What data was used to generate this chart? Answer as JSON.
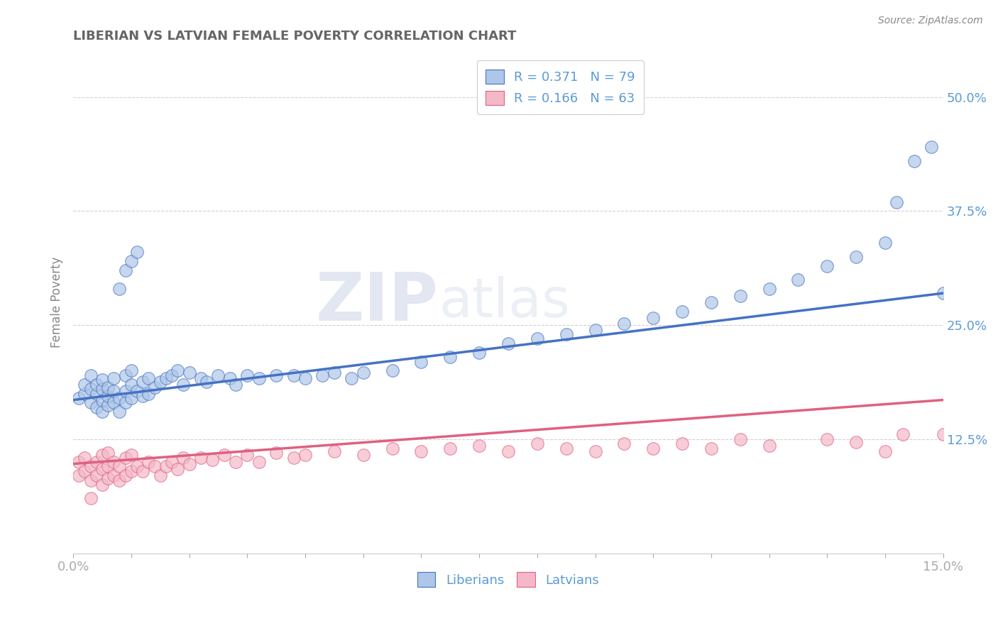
{
  "title": "LIBERIAN VS LATVIAN FEMALE POVERTY CORRELATION CHART",
  "source": "Source: ZipAtlas.com",
  "ylabel": "Female Poverty",
  "xlim": [
    0.0,
    0.15
  ],
  "ylim": [
    0.0,
    0.55
  ],
  "yticks": [
    0.0,
    0.125,
    0.25,
    0.375,
    0.5
  ],
  "ytick_labels": [
    "",
    "12.5%",
    "25.0%",
    "37.5%",
    "50.0%"
  ],
  "liberians_R": 0.371,
  "liberians_N": 79,
  "latvians_R": 0.166,
  "latvians_N": 63,
  "liberian_color": "#aec6e8",
  "latvian_color": "#f4b8c8",
  "liberian_line_color": "#4472c4",
  "latvian_line_color": "#e06080",
  "background_color": "#ffffff",
  "tick_color": "#5b9bd5",
  "liberian_x": [
    0.001,
    0.002,
    0.002,
    0.003,
    0.003,
    0.003,
    0.004,
    0.004,
    0.004,
    0.005,
    0.005,
    0.005,
    0.005,
    0.006,
    0.006,
    0.006,
    0.007,
    0.007,
    0.007,
    0.008,
    0.008,
    0.009,
    0.009,
    0.009,
    0.01,
    0.01,
    0.01,
    0.011,
    0.012,
    0.012,
    0.013,
    0.013,
    0.014,
    0.015,
    0.016,
    0.017,
    0.018,
    0.019,
    0.02,
    0.022,
    0.023,
    0.025,
    0.027,
    0.028,
    0.03,
    0.032,
    0.035,
    0.038,
    0.04,
    0.043,
    0.045,
    0.048,
    0.05,
    0.055,
    0.06,
    0.065,
    0.07,
    0.075,
    0.08,
    0.085,
    0.09,
    0.095,
    0.1,
    0.105,
    0.11,
    0.115,
    0.12,
    0.125,
    0.13,
    0.135,
    0.14,
    0.142,
    0.145,
    0.148,
    0.15,
    0.008,
    0.009,
    0.01,
    0.011
  ],
  "liberian_y": [
    0.17,
    0.175,
    0.185,
    0.165,
    0.18,
    0.195,
    0.16,
    0.175,
    0.185,
    0.155,
    0.168,
    0.18,
    0.19,
    0.162,
    0.172,
    0.182,
    0.165,
    0.178,
    0.192,
    0.155,
    0.17,
    0.165,
    0.178,
    0.195,
    0.17,
    0.185,
    0.2,
    0.178,
    0.172,
    0.188,
    0.175,
    0.192,
    0.182,
    0.188,
    0.192,
    0.195,
    0.2,
    0.185,
    0.198,
    0.192,
    0.188,
    0.195,
    0.192,
    0.185,
    0.195,
    0.192,
    0.195,
    0.195,
    0.192,
    0.195,
    0.198,
    0.192,
    0.198,
    0.2,
    0.21,
    0.215,
    0.22,
    0.23,
    0.235,
    0.24,
    0.245,
    0.252,
    0.258,
    0.265,
    0.275,
    0.282,
    0.29,
    0.3,
    0.315,
    0.325,
    0.34,
    0.385,
    0.43,
    0.445,
    0.285,
    0.29,
    0.31,
    0.32,
    0.33
  ],
  "latvian_x": [
    0.001,
    0.001,
    0.002,
    0.002,
    0.003,
    0.003,
    0.004,
    0.004,
    0.005,
    0.005,
    0.005,
    0.006,
    0.006,
    0.006,
    0.007,
    0.007,
    0.008,
    0.008,
    0.009,
    0.009,
    0.01,
    0.01,
    0.011,
    0.012,
    0.013,
    0.014,
    0.015,
    0.016,
    0.017,
    0.018,
    0.019,
    0.02,
    0.022,
    0.024,
    0.026,
    0.028,
    0.03,
    0.032,
    0.035,
    0.038,
    0.04,
    0.045,
    0.05,
    0.055,
    0.06,
    0.065,
    0.07,
    0.075,
    0.08,
    0.085,
    0.09,
    0.095,
    0.1,
    0.105,
    0.11,
    0.115,
    0.12,
    0.13,
    0.135,
    0.14,
    0.143,
    0.15,
    0.003
  ],
  "latvian_y": [
    0.085,
    0.1,
    0.09,
    0.105,
    0.08,
    0.095,
    0.085,
    0.1,
    0.075,
    0.092,
    0.108,
    0.082,
    0.095,
    0.11,
    0.085,
    0.1,
    0.08,
    0.095,
    0.085,
    0.105,
    0.09,
    0.108,
    0.095,
    0.09,
    0.1,
    0.095,
    0.085,
    0.095,
    0.1,
    0.092,
    0.105,
    0.098,
    0.105,
    0.102,
    0.108,
    0.1,
    0.108,
    0.1,
    0.11,
    0.105,
    0.108,
    0.112,
    0.108,
    0.115,
    0.112,
    0.115,
    0.118,
    0.112,
    0.12,
    0.115,
    0.112,
    0.12,
    0.115,
    0.12,
    0.115,
    0.125,
    0.118,
    0.125,
    0.122,
    0.112,
    0.13,
    0.13,
    0.06
  ],
  "lib_line_y0": 0.168,
  "lib_line_y1": 0.285,
  "lat_line_y0": 0.098,
  "lat_line_y1": 0.168
}
